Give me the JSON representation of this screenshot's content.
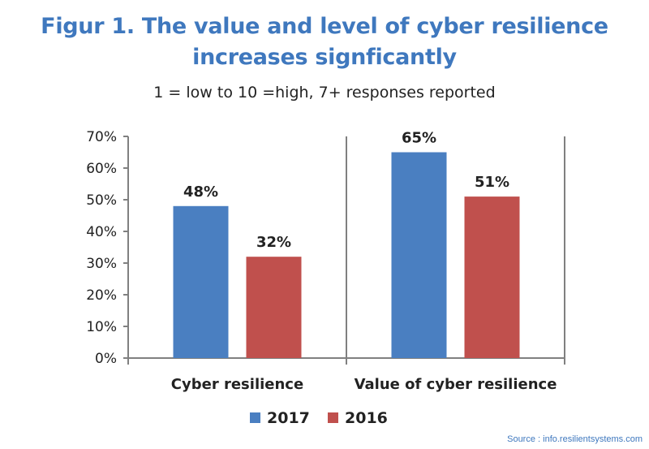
{
  "chart_data": {
    "type": "bar",
    "title_lines": [
      "Figur 1. The value and level of cyber resilience",
      "increases signficantly"
    ],
    "subtitle": "1 = low to 10 =high, 7+ responses reported",
    "categories": [
      "Cyber resilience",
      "Value of cyber resilience"
    ],
    "series": [
      {
        "name": "2017",
        "color": "#4a7fc1",
        "values": [
          48,
          65
        ],
        "labels": [
          "48%",
          "65%"
        ]
      },
      {
        "name": "2016",
        "color": "#c0504d",
        "values": [
          32,
          51
        ],
        "labels": [
          "32%",
          "51%"
        ]
      }
    ],
    "ylim": [
      0,
      70
    ],
    "yticks": [
      0,
      10,
      20,
      30,
      40,
      50,
      60,
      70
    ],
    "ytick_labels": [
      "0%",
      "10%",
      "20%",
      "30%",
      "40%",
      "50%",
      "60%",
      "70%"
    ],
    "grid": false,
    "legend_position": "bottom"
  },
  "source": "Source : info.resilientsystems.com"
}
